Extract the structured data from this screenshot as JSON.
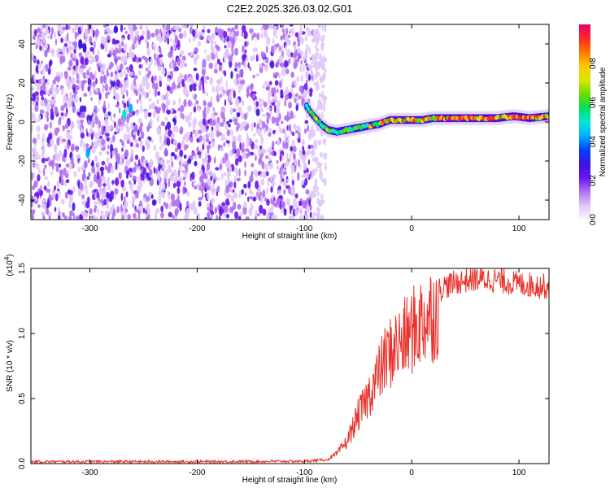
{
  "title": "C2E2.2025.326.03.02.G01",
  "colors": {
    "snr_line": "#e8322c",
    "axis": "#000000",
    "background": "#ffffff"
  },
  "chart_data": [
    {
      "type": "heatmap",
      "name": "spectrogram",
      "xlabel": "Height of straight line (km)",
      "ylabel": "Frequency (Hz)",
      "xlim": [
        -355,
        128
      ],
      "ylim": [
        -50,
        50
      ],
      "xticks": [
        -300,
        -200,
        -100,
        0,
        100
      ],
      "yticks": [
        -40,
        -20,
        0,
        20,
        40
      ],
      "colorbar": {
        "label": "Normalized spectral amplitude",
        "range": [
          0,
          1
        ],
        "ticks": [
          "0.0",
          "0.2",
          "0.4",
          "0.6",
          "0.8"
        ],
        "colormap": [
          "#f8f8ff",
          "#e0c8f8",
          "#b070f0",
          "#6a14f0",
          "#3a14e0",
          "#0040ff",
          "#00b0ff",
          "#00e8d0",
          "#00e060",
          "#6adc00",
          "#d8e800",
          "#ffc800",
          "#ff7800",
          "#ff2828",
          "#e80070"
        ]
      },
      "noise_region_x": [
        -355,
        -92
      ],
      "signal_ridge": [
        [
          -98,
          8
        ],
        [
          -93,
          4
        ],
        [
          -88,
          1
        ],
        [
          -83,
          -2
        ],
        [
          -78,
          -4
        ],
        [
          -70,
          -5
        ],
        [
          -60,
          -4
        ],
        [
          -50,
          -3
        ],
        [
          -40,
          -2
        ],
        [
          -30,
          -1
        ],
        [
          -20,
          1
        ],
        [
          -10,
          1
        ],
        [
          0,
          1
        ],
        [
          10,
          1
        ],
        [
          20,
          2
        ],
        [
          40,
          2
        ],
        [
          60,
          2
        ],
        [
          80,
          2
        ],
        [
          95,
          3
        ],
        [
          110,
          2
        ],
        [
          128,
          3
        ]
      ]
    },
    {
      "type": "line",
      "name": "snr",
      "xlabel": "Height of straight line (km)",
      "ylabel": "SNR (10 * v/v)",
      "multiplier_label": "(x10",
      "multiplier_exp": "4",
      "multiplier_close": ")",
      "xlim": [
        -355,
        128
      ],
      "ylim": [
        0,
        1.5
      ],
      "xticks": [
        -300,
        -200,
        -100,
        0,
        100
      ],
      "yticks": [
        "0.0",
        "0.5",
        "1.0",
        "1.5"
      ],
      "envelope": [
        [
          -355,
          0.015
        ],
        [
          -200,
          0.015
        ],
        [
          -100,
          0.018
        ],
        [
          -80,
          0.03
        ],
        [
          -70,
          0.08
        ],
        [
          -60,
          0.2
        ],
        [
          -50,
          0.42
        ],
        [
          -45,
          0.5
        ],
        [
          -40,
          0.6
        ],
        [
          -35,
          0.7
        ],
        [
          -30,
          0.8
        ],
        [
          -25,
          0.9
        ],
        [
          -20,
          0.97
        ],
        [
          -15,
          1.02
        ],
        [
          -10,
          1.05
        ],
        [
          -5,
          1.1
        ],
        [
          0,
          1.15
        ],
        [
          5,
          1.2
        ],
        [
          10,
          1.25
        ],
        [
          20,
          1.32
        ],
        [
          30,
          1.38
        ],
        [
          45,
          1.42
        ],
        [
          60,
          1.44
        ],
        [
          80,
          1.43
        ],
        [
          100,
          1.4
        ],
        [
          128,
          1.38
        ]
      ]
    }
  ]
}
